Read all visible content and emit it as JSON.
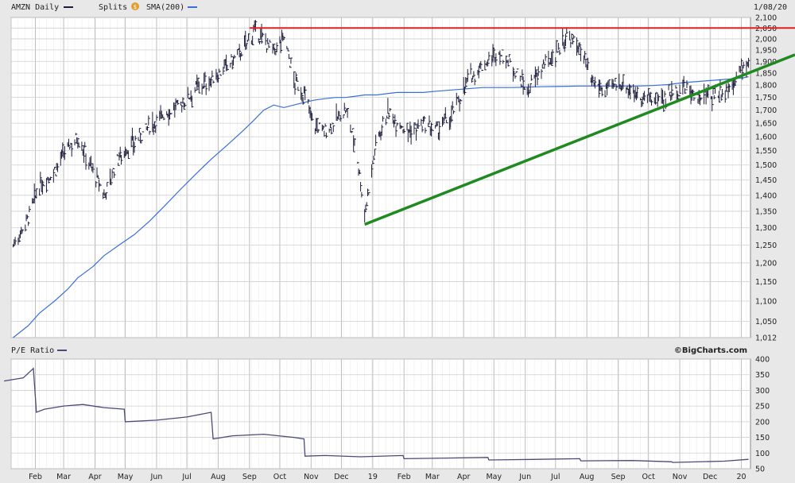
{
  "header": {
    "symbol_label": "AMZN Daily",
    "splits_label": "Splits",
    "splits_icon": "dollar-circle-icon",
    "sma_label": "SMA(200)",
    "date_label": "1/08/20"
  },
  "lower": {
    "title": "P/E Ratio",
    "brand": "©BigCharts.com"
  },
  "colors": {
    "price_bars": "#1c1c3c",
    "sma": "#3a6fd8",
    "resistance": "#e02020",
    "support": "#1f8a1f",
    "pe_line": "#4a4a78",
    "grid": "#cfcfcf",
    "panel_bg": "#ffffff",
    "outer_bg": "#e8e8e8"
  },
  "chart_data": [
    {
      "type": "line",
      "title": "AMZN Daily",
      "y_scale": "log",
      "ylim": [
        1012,
        2100
      ],
      "y_ticks": [
        1012,
        1050,
        1100,
        1150,
        1200,
        1250,
        1300,
        1350,
        1400,
        1450,
        1500,
        1550,
        1600,
        1650,
        1700,
        1750,
        1800,
        1850,
        1900,
        1950,
        2000,
        2050,
        2100
      ],
      "y_tick_labels": [
        "1,012",
        "1,050",
        "1,100",
        "1,150",
        "1,200",
        "1,250",
        "1,300",
        "1,350",
        "1,400",
        "1,450",
        "1,500",
        "1,550",
        "1,600",
        "1,650",
        "1,700",
        "1,750",
        "1,800",
        "1,850",
        "1,900",
        "1,950",
        "2,000",
        "2,050",
        "2,100"
      ],
      "x_labels": [
        "Feb",
        "Mar",
        "Apr",
        "May",
        "Jun",
        "Jul",
        "Aug",
        "Sep",
        "Oct",
        "Nov",
        "Dec",
        "19",
        "Feb",
        "Mar",
        "Apr",
        "May",
        "Jun",
        "Jul",
        "Aug",
        "Sep",
        "Oct",
        "Nov",
        "Dec",
        "20"
      ],
      "x": [
        "2018-01-10",
        "2018-01-25",
        "2018-02-05",
        "2018-02-20",
        "2018-03-05",
        "2018-03-15",
        "2018-03-30",
        "2018-04-10",
        "2018-04-25",
        "2018-05-10",
        "2018-05-25",
        "2018-06-10",
        "2018-06-25",
        "2018-07-10",
        "2018-07-25",
        "2018-08-10",
        "2018-08-25",
        "2018-09-05",
        "2018-09-15",
        "2018-09-25",
        "2018-10-05",
        "2018-10-15",
        "2018-10-25",
        "2018-11-05",
        "2018-11-15",
        "2018-11-25",
        "2018-12-05",
        "2018-12-15",
        "2018-12-24",
        "2019-01-05",
        "2019-01-15",
        "2019-01-25",
        "2019-02-05",
        "2019-02-20",
        "2019-03-05",
        "2019-03-20",
        "2019-04-05",
        "2019-04-20",
        "2019-05-05",
        "2019-05-20",
        "2019-06-03",
        "2019-06-15",
        "2019-06-30",
        "2019-07-12",
        "2019-07-25",
        "2019-08-05",
        "2019-08-20",
        "2019-09-05",
        "2019-09-20",
        "2019-10-05",
        "2019-10-20",
        "2019-11-05",
        "2019-11-20",
        "2019-12-05",
        "2019-12-20",
        "2020-01-03",
        "2020-01-08"
      ],
      "series": [
        {
          "name": "AMZN Daily",
          "values": [
            1250,
            1330,
            1430,
            1480,
            1560,
            1600,
            1480,
            1400,
            1530,
            1580,
            1640,
            1690,
            1720,
            1790,
            1820,
            1880,
            1950,
            2030,
            2000,
            1940,
            2010,
            1820,
            1760,
            1640,
            1620,
            1660,
            1700,
            1570,
            1340,
            1590,
            1690,
            1660,
            1620,
            1640,
            1620,
            1680,
            1820,
            1880,
            1940,
            1880,
            1770,
            1860,
            1930,
            2010,
            1960,
            1810,
            1780,
            1810,
            1760,
            1740,
            1760,
            1790,
            1750,
            1760,
            1790,
            1880,
            1900
          ]
        },
        {
          "name": "SMA(200)",
          "values": [
            1012,
            1040,
            1070,
            1100,
            1130,
            1160,
            1190,
            1220,
            1250,
            1280,
            1320,
            1370,
            1420,
            1470,
            1520,
            1570,
            1620,
            1660,
            1700,
            1720,
            1710,
            1720,
            1730,
            1740,
            1745,
            1750,
            1750,
            1755,
            1760,
            1760,
            1765,
            1770,
            1770,
            1770,
            1775,
            1780,
            1785,
            1790,
            1790,
            1790,
            1792,
            1793,
            1794,
            1795,
            1796,
            1796,
            1796,
            1796,
            1796,
            1798,
            1802,
            1810,
            1815,
            1820,
            1825,
            1830,
            1835
          ]
        }
      ],
      "annotations": [
        {
          "name": "resistance",
          "type": "horizontal",
          "y": 2050,
          "x_start": "2018-09-01",
          "x_end": "2020-01-08"
        },
        {
          "name": "support",
          "type": "trendline",
          "points": [
            [
              "2018-12-24",
              1310
            ],
            [
              "2020-01-08",
              1850
            ]
          ]
        }
      ]
    },
    {
      "type": "line",
      "title": "P/E Ratio",
      "ylim": [
        50,
        400
      ],
      "y_ticks": [
        50,
        100,
        150,
        200,
        250,
        300,
        350,
        400
      ],
      "y_tick_labels": [
        "50",
        "100",
        "150",
        "200",
        "250",
        "300",
        "350",
        "400"
      ],
      "x": [
        "2018-01-01",
        "2018-01-20",
        "2018-01-30",
        "2018-02-02",
        "2018-02-10",
        "2018-03-01",
        "2018-03-20",
        "2018-04-10",
        "2018-04-30",
        "2018-05-01",
        "2018-06-01",
        "2018-07-01",
        "2018-07-25",
        "2018-07-27",
        "2018-08-15",
        "2018-09-15",
        "2018-10-15",
        "2018-10-25",
        "2018-10-26",
        "2018-11-15",
        "2018-12-20",
        "2019-01-31",
        "2019-02-01",
        "2019-03-15",
        "2019-04-25",
        "2019-04-26",
        "2019-06-15",
        "2019-07-25",
        "2019-07-26",
        "2019-09-15",
        "2019-10-24",
        "2019-10-25",
        "2019-12-15",
        "2020-01-08"
      ],
      "series": [
        {
          "name": "P/E Ratio",
          "values": [
            330,
            340,
            370,
            230,
            240,
            250,
            255,
            245,
            240,
            200,
            205,
            215,
            230,
            145,
            155,
            160,
            150,
            145,
            90,
            92,
            88,
            92,
            82,
            84,
            86,
            78,
            80,
            82,
            75,
            76,
            72,
            70,
            74,
            80
          ]
        }
      ]
    }
  ]
}
